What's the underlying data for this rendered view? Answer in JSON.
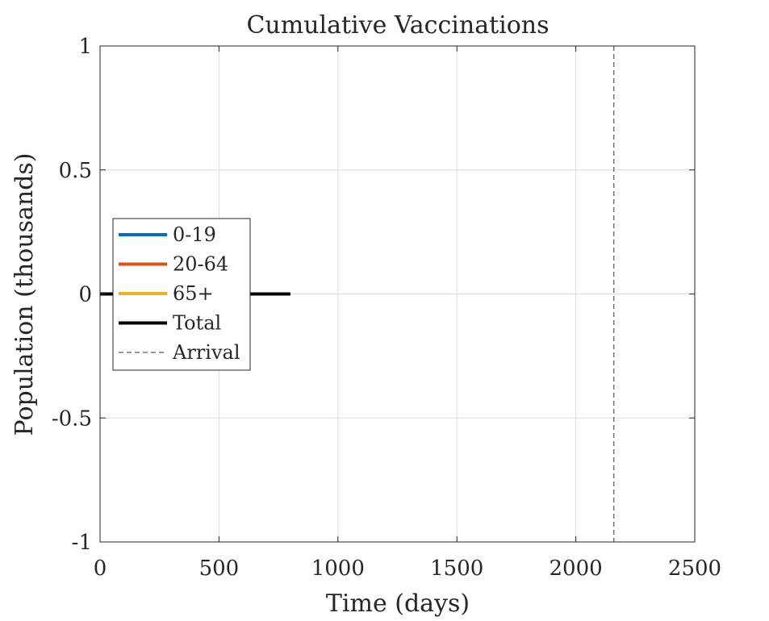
{
  "chart_data": {
    "type": "line",
    "title": "Cumulative Vaccinations",
    "xlabel": "Time (days)",
    "ylabel": "Population (thousands)",
    "xlim": [
      0,
      2500
    ],
    "ylim": [
      -1,
      1
    ],
    "xticks": [
      0,
      500,
      1000,
      1500,
      2000,
      2500
    ],
    "xtick_labels": [
      "0",
      "500",
      "1000",
      "1500",
      "2000",
      "2500"
    ],
    "yticks": [
      -1,
      -0.5,
      0,
      0.5,
      1
    ],
    "ytick_labels": [
      "-1",
      "-0.5",
      "0",
      "0.5",
      "1"
    ],
    "grid": true,
    "legend_position": "center-left",
    "series": [
      {
        "name": "0-19",
        "color": "#0072BD",
        "x": [
          0,
          800
        ],
        "y": [
          0,
          0
        ]
      },
      {
        "name": "20-64",
        "color": "#D95319",
        "x": [
          0,
          800
        ],
        "y": [
          0,
          0
        ]
      },
      {
        "name": "65+",
        "color": "#EDB120",
        "x": [
          0,
          800
        ],
        "y": [
          0,
          0
        ]
      },
      {
        "name": "Total",
        "color": "#000000",
        "x": [
          0,
          800
        ],
        "y": [
          0,
          0
        ]
      }
    ],
    "arrival": {
      "name": "Arrival",
      "x": 2160,
      "color": "#333333",
      "style": "dashed"
    }
  }
}
